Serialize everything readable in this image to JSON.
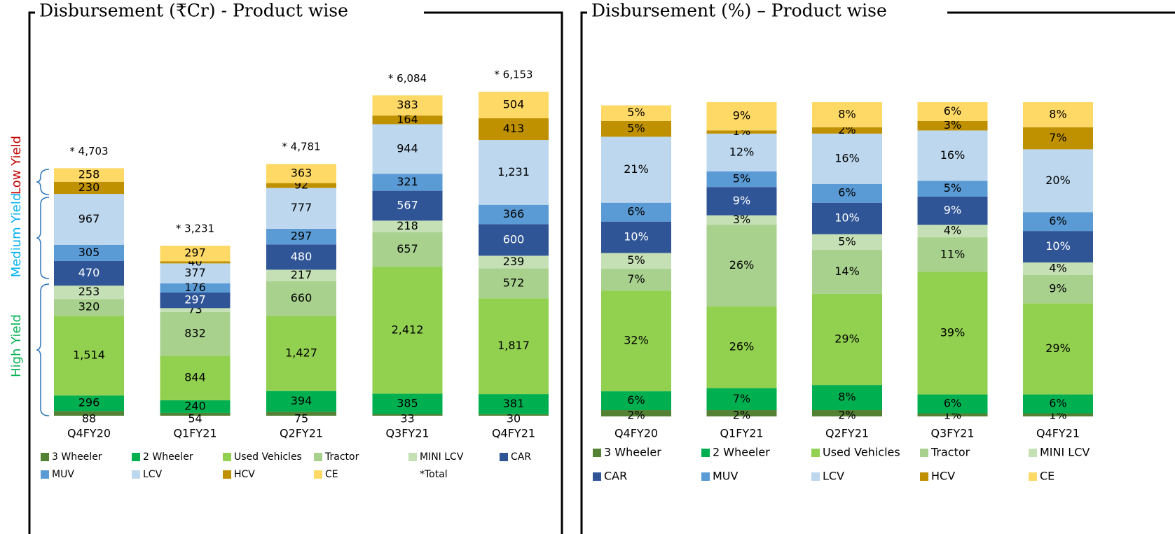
{
  "chart_data": [
    {
      "type": "stacked_bar",
      "title": "Disbursement (₹Cr) - Product wise",
      "categories": [
        "Q4FY20",
        "Q1FY21",
        "Q2FY21",
        "Q3FY21",
        "Q4FY21"
      ],
      "ylim": [
        0,
        6500
      ],
      "annotations": [
        "Low Yield",
        "Medium Yield",
        "High Yield"
      ],
      "series": [
        {
          "name": "3 Wheeler",
          "color": "#548235",
          "values": [
            88,
            54,
            75,
            33,
            30
          ]
        },
        {
          "name": "2 Wheeler",
          "color": "#00b050",
          "values": [
            296,
            240,
            394,
            385,
            381
          ]
        },
        {
          "name": "Used Vehicles",
          "color": "#92d050",
          "values": [
            1514,
            844,
            1427,
            2412,
            1817
          ],
          "value_labels": [
            "1,514",
            "844",
            "1,427",
            "2,412",
            "1,817"
          ]
        },
        {
          "name": "Tractor",
          "color": "#a9d18e",
          "values": [
            320,
            832,
            660,
            657,
            572
          ]
        },
        {
          "name": "MINI LCV",
          "color": "#c5e0b4",
          "values": [
            253,
            73,
            217,
            218,
            239
          ]
        },
        {
          "name": "CAR",
          "color": "#2f5597",
          "values": [
            470,
            297,
            480,
            567,
            600
          ]
        },
        {
          "name": "MUV",
          "color": "#5b9bd5",
          "values": [
            305,
            176,
            297,
            321,
            366
          ]
        },
        {
          "name": "LCV",
          "color": "#bdd7ee",
          "values": [
            967,
            377,
            777,
            944,
            1231
          ],
          "value_labels": [
            "967",
            "377",
            "777",
            "944",
            "1,231"
          ]
        },
        {
          "name": "HCV",
          "color": "#bf9000",
          "values": [
            230,
            40,
            92,
            164,
            413
          ]
        },
        {
          "name": "CE",
          "color": "#ffd966",
          "values": [
            258,
            297,
            363,
            383,
            504
          ]
        }
      ],
      "totals": {
        "name": "*Total",
        "values": [
          4703,
          3231,
          4781,
          6084,
          6153
        ],
        "value_labels": [
          "* 4,703",
          "* 3,231",
          "* 4,781",
          "* 6,084",
          "* 6,153"
        ]
      }
    },
    {
      "type": "stacked_bar",
      "title": "Disbursement (%) – Product wise",
      "categories": [
        "Q4FY20",
        "Q1FY21",
        "Q2FY21",
        "Q3FY21",
        "Q4FY21"
      ],
      "ylim": [
        0,
        100
      ],
      "series": [
        {
          "name": "3 Wheeler",
          "color": "#548235",
          "values": [
            2,
            2,
            2,
            1,
            1
          ],
          "value_labels": [
            "2%",
            "2%",
            "2%",
            "1%",
            "1%"
          ]
        },
        {
          "name": "2 Wheeler",
          "color": "#00b050",
          "values": [
            6,
            7,
            8,
            6,
            6
          ],
          "value_labels": [
            "6%",
            "7%",
            "8%",
            "6%",
            "6%"
          ]
        },
        {
          "name": "Used Vehicles",
          "color": "#92d050",
          "values": [
            32,
            26,
            29,
            39,
            29
          ],
          "value_labels": [
            "32%",
            "26%",
            "29%",
            "39%",
            "29%"
          ]
        },
        {
          "name": "Tractor",
          "color": "#a9d18e",
          "values": [
            7,
            26,
            14,
            11,
            9
          ],
          "value_labels": [
            "7%",
            "26%",
            "14%",
            "11%",
            "9%"
          ]
        },
        {
          "name": "MINI LCV",
          "color": "#c5e0b4",
          "values": [
            5,
            3,
            5,
            4,
            4
          ],
          "value_labels": [
            "5%",
            "3%",
            "5%",
            "4%",
            "4%"
          ]
        },
        {
          "name": "CAR",
          "color": "#2f5597",
          "values": [
            10,
            9,
            10,
            9,
            10
          ],
          "value_labels": [
            "10%",
            "9%",
            "10%",
            "9%",
            "10%"
          ]
        },
        {
          "name": "MUV",
          "color": "#5b9bd5",
          "values": [
            6,
            5,
            6,
            5,
            6
          ],
          "value_labels": [
            "6%",
            "5%",
            "6%",
            "5%",
            "6%"
          ]
        },
        {
          "name": "LCV",
          "color": "#bdd7ee",
          "values": [
            21,
            12,
            16,
            16,
            20
          ],
          "value_labels": [
            "21%",
            "12%",
            "16%",
            "16%",
            "20%"
          ]
        },
        {
          "name": "HCV",
          "color": "#bf9000",
          "values": [
            5,
            1,
            2,
            3,
            7
          ],
          "value_labels": [
            "5%",
            "1%",
            "2%",
            "3%",
            "7%"
          ]
        },
        {
          "name": "CE",
          "color": "#ffd966",
          "values": [
            5,
            9,
            8,
            6,
            8
          ],
          "value_labels": [
            "5%",
            "9%",
            "8%",
            "6%",
            "8%"
          ]
        }
      ]
    }
  ]
}
